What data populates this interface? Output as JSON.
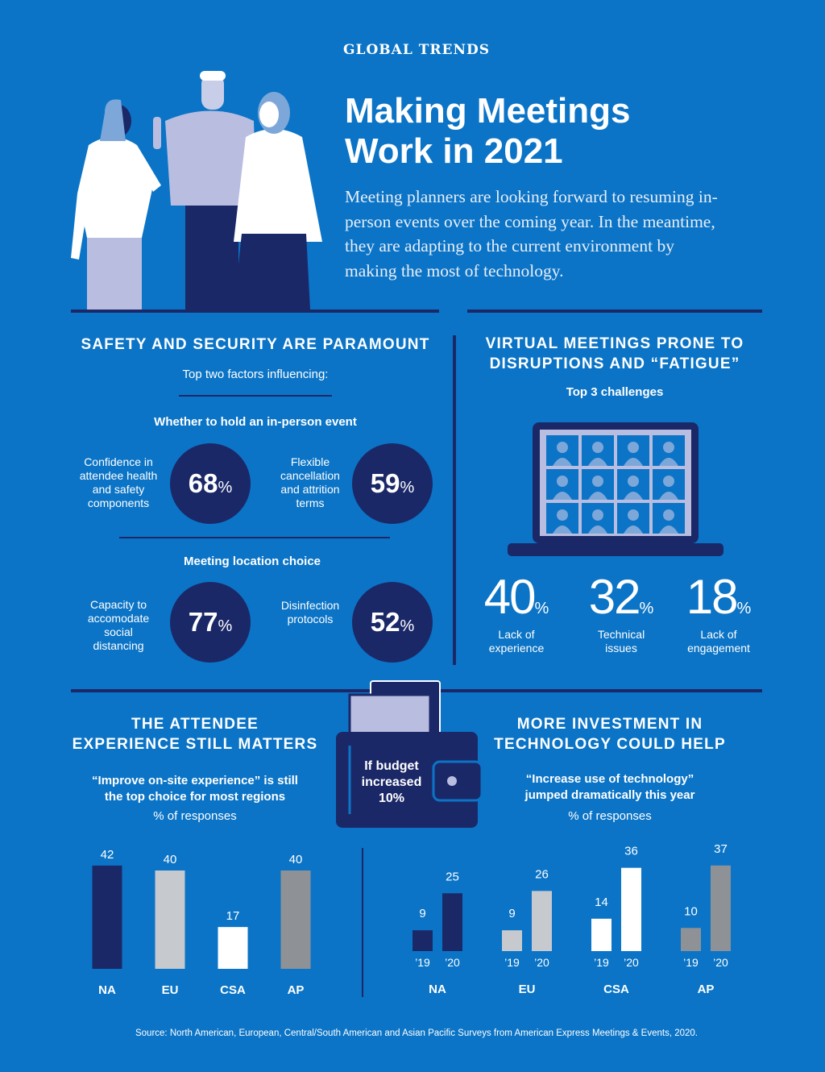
{
  "header": {
    "kicker": "GLOBAL TRENDS",
    "title_lines": [
      "Making Meetings",
      "Work in 2021"
    ],
    "intro": "Meeting planners are looking forward to resuming in-person events over the coming year. In the meantime, they are adapting to the current environment by making the most of technology."
  },
  "safety": {
    "title": "SAFETY AND SECURITY ARE PARAMOUNT",
    "subtitle": "Top two factors influencing:",
    "groups": [
      {
        "heading": "Whether to hold an in-person event",
        "stats": [
          {
            "label": "Confidence in attendee health and safety components",
            "value": 68,
            "unit": "%"
          },
          {
            "label": "Flexible cancellation and attrition terms",
            "value": 59,
            "unit": "%"
          }
        ]
      },
      {
        "heading": "Meeting location choice",
        "stats": [
          {
            "label": "Capacity to accomodate social distancing",
            "value": 77,
            "unit": "%"
          },
          {
            "label": "Disinfection protocols",
            "value": 52,
            "unit": "%"
          }
        ]
      }
    ]
  },
  "virtual": {
    "title_lines": [
      "VIRTUAL MEETINGS PRONE TO",
      "DISRUPTIONS AND “FATIGUE”"
    ],
    "subtitle": "Top 3 challenges",
    "stats": [
      {
        "value": 40,
        "unit": "%",
        "label": "Lack of experience"
      },
      {
        "value": 32,
        "unit": "%",
        "label": "Technical issues"
      },
      {
        "value": 18,
        "unit": "%",
        "label": "Lack of engagement"
      }
    ]
  },
  "attendee": {
    "title_lines": [
      "THE ATTENDEE",
      "EXPERIENCE STILL MATTERS"
    ],
    "quote_lines": [
      "“Improve on-site experience” is still",
      "the top choice for most regions"
    ],
    "note": "% of responses",
    "chart": {
      "type": "bar",
      "categories": [
        "NA",
        "EU",
        "CSA",
        "AP"
      ],
      "values": [
        42,
        40,
        17,
        40
      ],
      "colors": [
        "#1b2868",
        "#c6c9ce",
        "#ffffff",
        "#8e9296"
      ]
    }
  },
  "budget": {
    "lines": [
      "If budget",
      "increased",
      "10%"
    ]
  },
  "technology": {
    "title_lines": [
      "MORE INVESTMENT IN",
      "TECHNOLOGY COULD HELP"
    ],
    "quote_lines": [
      "“Increase use of technology”",
      "jumped dramatically this year"
    ],
    "note": "% of responses",
    "chart": {
      "type": "grouped-bar",
      "categories": [
        "NA",
        "EU",
        "CSA",
        "AP"
      ],
      "colors": [
        "#1b2868",
        "#c6c9ce",
        "#ffffff",
        "#8e9296"
      ],
      "series": [
        {
          "name": "’19",
          "values": [
            9,
            9,
            14,
            10
          ]
        },
        {
          "name": "’20",
          "values": [
            25,
            26,
            36,
            37
          ]
        }
      ]
    }
  },
  "source": "Source: North American, European, Central/South American and Asian Pacific Surveys from American Express Meetings & Events, 2020."
}
